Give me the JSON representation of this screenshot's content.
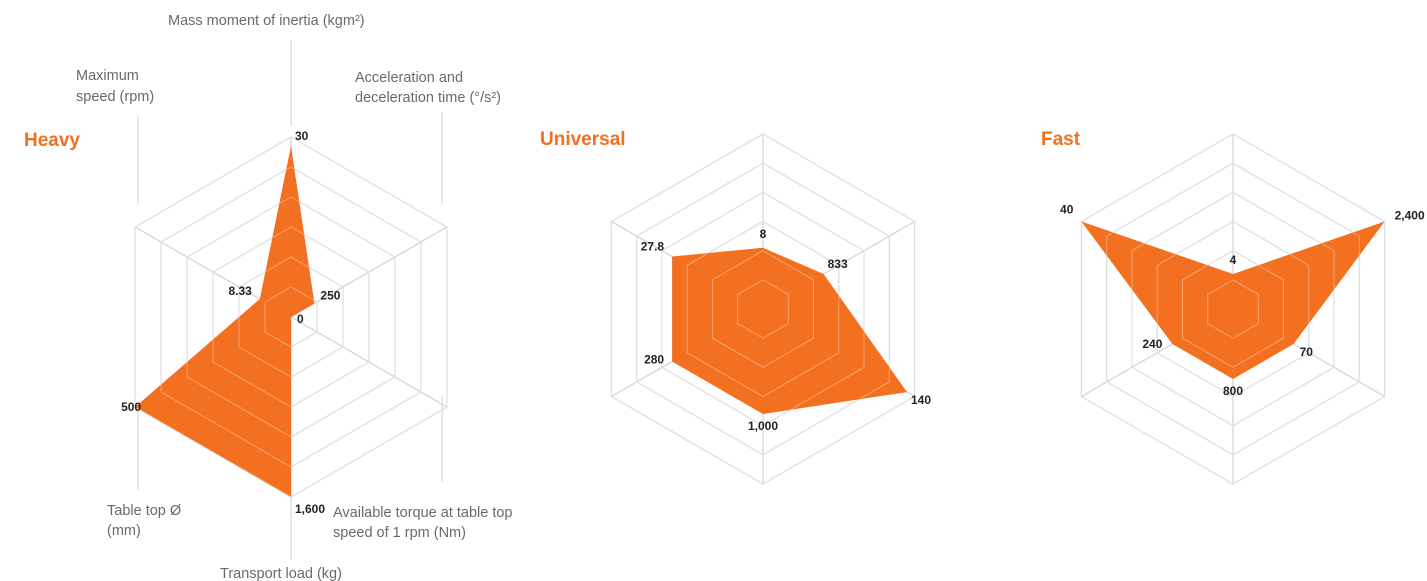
{
  "colors": {
    "accent": "#f37021",
    "grid": "#d2d2d2",
    "label": "#6a6a6a",
    "value": "#222222"
  },
  "axis_labels": {
    "mass_moment": "Mass moment of inertia (kgm²)",
    "accel_line1": "Acceleration and",
    "accel_line2": "deceleration time (°/s²)",
    "torque_line1": "Available torque at table top",
    "torque_line2": "speed of 1 rpm (Nm)",
    "transport": "Transport load (kg)",
    "table_line1": "Table top Ø",
    "table_line2": "(mm)",
    "speed_line1": "Maximum",
    "speed_line2": "speed (rpm)"
  },
  "chart_data": [
    {
      "type": "radar",
      "title": "Heavy",
      "axes": [
        "Mass moment of inertia (kgm²)",
        "Acceleration and deceleration time (°/s²)",
        "Available torque at table top speed of 1 rpm (Nm)",
        "Transport load (kg)",
        "Table top Ø (mm)",
        "Maximum speed (rpm)"
      ],
      "values": [
        30,
        250,
        0,
        1600,
        500,
        8.33
      ],
      "value_labels": [
        "30",
        "250",
        "0",
        "1,600",
        "500",
        "8.33"
      ],
      "levels": [
        0.95,
        0.15,
        0,
        1,
        1,
        0.2
      ]
    },
    {
      "type": "radar",
      "title": "Universal",
      "axes": [
        "Mass moment of inertia (kgm²)",
        "Acceleration and deceleration time (°/s²)",
        "Available torque at table top speed of 1 rpm (Nm)",
        "Transport load (kg)",
        "Table top Ø (mm)",
        "Maximum speed (rpm)"
      ],
      "values": [
        8,
        833,
        140,
        1000,
        280,
        27.8
      ],
      "value_labels": [
        "8",
        "833",
        "140",
        "1,000",
        "280",
        "27.8"
      ],
      "levels": [
        0.35,
        0.4,
        0.95,
        0.6,
        0.6,
        0.6
      ]
    },
    {
      "type": "radar",
      "title": "Fast",
      "axes": [
        "Mass moment of inertia (kgm²)",
        "Acceleration and deceleration time (°/s²)",
        "Available torque at table top speed of 1 rpm (Nm)",
        "Transport load (kg)",
        "Table top Ø (mm)",
        "Maximum speed (rpm)"
      ],
      "values": [
        4,
        2400,
        70,
        800,
        240,
        40
      ],
      "value_labels": [
        "4",
        "2,400",
        "70",
        "800",
        "240",
        "40"
      ],
      "levels": [
        0.2,
        1,
        0.4,
        0.4,
        0.4,
        1
      ]
    }
  ]
}
